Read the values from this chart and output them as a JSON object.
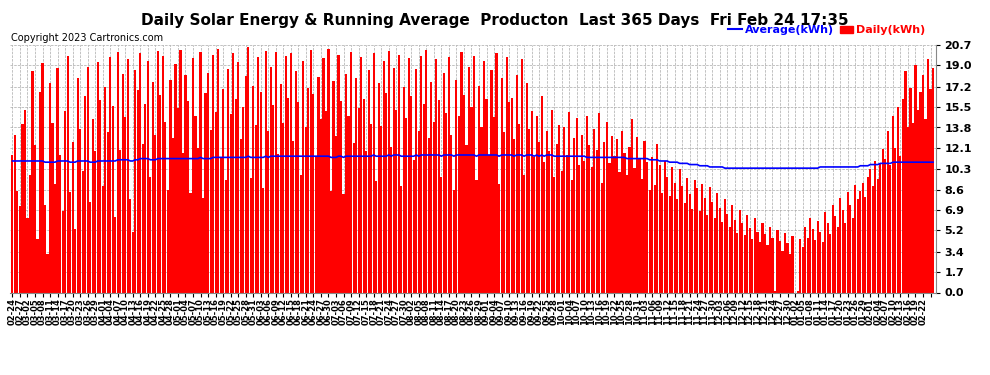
{
  "title": "Daily Solar Energy & Running Average  Producton  Last 365 Days  Fri Feb 24 17:35",
  "copyright": "Copyright 2023 Cartronics.com",
  "ylabel_right_ticks": [
    0.0,
    1.7,
    3.4,
    5.2,
    6.9,
    8.6,
    10.3,
    12.1,
    13.8,
    15.5,
    17.2,
    19.0,
    20.7
  ],
  "ylim": [
    0.0,
    20.7
  ],
  "bar_color": "#ff0000",
  "avg_color": "#0000ff",
  "legend_avg_label": "Average(kWh)",
  "legend_daily_label": "Daily(kWh)",
  "background_color": "#ffffff",
  "grid_color": "#aaaaaa",
  "title_fontsize": 11,
  "copyright_fontsize": 7,
  "x_dates": [
    "02-24",
    "02-25",
    "02-26",
    "02-27",
    "02-28",
    "03-01",
    "03-02",
    "03-03",
    "03-04",
    "03-05",
    "03-06",
    "03-07",
    "03-08",
    "03-09",
    "03-10",
    "03-11",
    "03-12",
    "03-13",
    "03-14",
    "03-15",
    "03-16",
    "03-17",
    "03-18",
    "03-19",
    "03-20",
    "03-21",
    "03-22",
    "03-23",
    "03-24",
    "03-25",
    "03-26",
    "03-27",
    "03-28",
    "03-29",
    "03-30",
    "03-31",
    "04-01",
    "04-02",
    "04-03",
    "04-04",
    "04-05",
    "04-06",
    "04-07",
    "04-08",
    "04-09",
    "04-10",
    "04-11",
    "04-12",
    "04-13",
    "04-14",
    "04-15",
    "04-16",
    "04-17",
    "04-18",
    "04-19",
    "04-20",
    "04-21",
    "04-22",
    "04-23",
    "04-24",
    "04-25",
    "04-26",
    "04-27",
    "04-28",
    "04-29",
    "04-30",
    "05-01",
    "05-02",
    "05-03",
    "05-04",
    "05-05",
    "05-06",
    "05-07",
    "05-08",
    "05-09",
    "05-10",
    "05-11",
    "05-12",
    "05-13",
    "05-14",
    "05-15",
    "05-16",
    "05-17",
    "05-18",
    "05-19",
    "05-20",
    "05-21",
    "05-22",
    "05-23",
    "05-24",
    "05-25",
    "05-26",
    "05-27",
    "05-28",
    "05-29",
    "05-30",
    "05-31",
    "06-01",
    "06-02",
    "06-03",
    "06-04",
    "06-05",
    "06-06",
    "06-07",
    "06-08",
    "06-09",
    "06-10",
    "06-11",
    "06-12",
    "06-13",
    "06-14",
    "06-15",
    "06-16",
    "06-17",
    "06-18",
    "06-19",
    "06-20",
    "06-21",
    "06-22",
    "06-23",
    "06-24",
    "06-25",
    "06-26",
    "06-27",
    "06-28",
    "06-29",
    "06-30",
    "07-01",
    "07-02",
    "07-03",
    "07-04",
    "07-05",
    "07-06",
    "07-07",
    "07-08",
    "07-09",
    "07-10",
    "07-11",
    "07-12",
    "07-13",
    "07-14",
    "07-15",
    "07-16",
    "07-17",
    "07-18",
    "07-19",
    "07-20",
    "07-21",
    "07-22",
    "07-23",
    "07-24",
    "07-25",
    "07-26",
    "07-27",
    "07-28",
    "07-29",
    "07-30",
    "07-31",
    "08-01",
    "08-02",
    "08-03",
    "08-04",
    "08-05",
    "08-06",
    "08-07",
    "08-08",
    "08-09",
    "08-10",
    "08-11",
    "08-12",
    "08-13",
    "08-14",
    "08-15",
    "08-16",
    "08-17",
    "08-18",
    "08-19",
    "08-20",
    "08-21",
    "08-22",
    "08-23",
    "08-24",
    "08-25",
    "08-26",
    "08-27",
    "08-28",
    "08-29",
    "08-30",
    "08-31",
    "09-01",
    "09-02",
    "09-03",
    "09-04",
    "09-05",
    "09-06",
    "09-07",
    "09-08",
    "09-09",
    "09-10",
    "09-11",
    "09-12",
    "09-13",
    "09-14",
    "09-15",
    "09-16",
    "09-17",
    "09-18",
    "09-19",
    "09-20",
    "09-21",
    "09-22",
    "09-23",
    "09-24",
    "09-25",
    "09-26",
    "09-27",
    "09-28",
    "09-29",
    "09-30",
    "10-01",
    "10-02",
    "10-03",
    "10-04",
    "10-05",
    "10-06",
    "10-07",
    "10-08",
    "10-09",
    "10-10",
    "10-11",
    "10-12",
    "10-13",
    "10-14",
    "10-15",
    "10-16",
    "10-17",
    "10-18",
    "10-19",
    "10-20",
    "10-21",
    "10-22",
    "10-23",
    "10-24",
    "10-25",
    "10-26",
    "10-27",
    "10-28",
    "10-29",
    "10-30",
    "10-31",
    "11-01",
    "11-02",
    "11-03",
    "11-04",
    "11-05",
    "11-06",
    "11-07",
    "11-08",
    "11-09",
    "11-10",
    "11-11",
    "11-12",
    "11-13",
    "11-14",
    "11-15",
    "11-16",
    "11-17",
    "11-18",
    "11-19",
    "11-20",
    "11-21",
    "11-22",
    "11-23",
    "11-24",
    "11-25",
    "11-26",
    "11-27",
    "11-28",
    "11-29",
    "11-30",
    "12-01",
    "12-02",
    "12-03",
    "12-04",
    "12-05",
    "12-06",
    "12-07",
    "12-08",
    "12-09",
    "12-10",
    "12-11",
    "12-12",
    "12-13",
    "12-14",
    "12-15",
    "12-16",
    "12-17",
    "12-18",
    "12-19",
    "12-20",
    "12-21",
    "12-22",
    "12-23",
    "12-24",
    "12-25",
    "12-26",
    "12-27",
    "12-28",
    "12-29",
    "12-30",
    "12-31",
    "01-01",
    "01-02",
    "01-03",
    "01-04",
    "01-05",
    "01-06",
    "01-07",
    "01-08",
    "01-09",
    "01-10",
    "01-11",
    "01-12",
    "01-13",
    "01-14",
    "01-15",
    "01-16",
    "01-17",
    "01-18",
    "01-19",
    "01-20",
    "01-21",
    "01-22",
    "01-23",
    "01-24",
    "01-25",
    "01-26",
    "01-27",
    "01-28",
    "01-29",
    "01-30",
    "01-31",
    "02-01",
    "02-02",
    "02-03",
    "02-04",
    "02-05",
    "02-06",
    "02-07",
    "02-08",
    "02-09",
    "02-10",
    "02-11",
    "02-12",
    "02-13",
    "02-14",
    "02-15",
    "02-16",
    "02-17",
    "02-18",
    "02-19",
    "02-20",
    "02-21",
    "02-22",
    "02-23",
    "02-24"
  ],
  "daily_values": [
    11.5,
    13.2,
    8.5,
    7.2,
    14.1,
    15.3,
    6.2,
    9.8,
    18.5,
    12.3,
    4.5,
    16.8,
    19.2,
    7.3,
    3.2,
    17.5,
    14.2,
    9.1,
    18.8,
    11.5,
    6.8,
    15.2,
    19.8,
    8.4,
    12.6,
    5.3,
    17.9,
    13.7,
    10.2,
    16.4,
    18.9,
    7.6,
    14.5,
    11.8,
    19.3,
    16.1,
    8.9,
    17.2,
    13.4,
    19.7,
    15.6,
    6.3,
    20.1,
    11.9,
    18.3,
    14.7,
    19.5,
    7.8,
    5.1,
    18.6,
    16.9,
    20.0,
    12.4,
    15.8,
    19.4,
    9.7,
    17.6,
    13.2,
    20.2,
    16.5,
    19.8,
    14.3,
    8.6,
    17.8,
    12.9,
    19.1,
    15.4,
    20.3,
    11.7,
    18.2,
    16.0,
    8.3,
    19.6,
    14.8,
    12.1,
    20.1,
    7.9,
    16.7,
    18.4,
    13.6,
    19.9,
    15.1,
    20.4,
    11.3,
    17.0,
    9.4,
    18.7,
    14.9,
    20.0,
    16.2,
    19.3,
    12.8,
    15.5,
    18.1,
    20.5,
    9.6,
    17.3,
    14.0,
    19.7,
    16.8,
    8.7,
    20.2,
    13.5,
    18.9,
    15.7,
    20.1,
    11.6,
    17.4,
    14.2,
    19.8,
    16.3,
    20.0,
    12.7,
    18.5,
    15.9,
    9.8,
    19.4,
    13.8,
    17.1,
    20.3,
    16.6,
    11.4,
    18.0,
    14.5,
    19.6,
    15.2,
    20.4,
    8.5,
    17.7,
    13.1,
    19.9,
    16.0,
    8.2,
    18.3,
    14.8,
    20.1,
    12.5,
    17.9,
    15.4,
    19.7,
    16.2,
    11.8,
    18.6,
    14.1,
    20.0,
    9.3,
    17.5,
    13.9,
    19.4,
    16.7,
    20.2,
    12.2,
    18.8,
    15.3,
    19.9,
    8.9,
    17.2,
    14.6,
    19.6,
    16.4,
    11.1,
    18.7,
    13.5,
    19.8,
    15.8,
    20.3,
    12.9,
    17.6,
    14.3,
    19.5,
    16.1,
    9.7,
    18.4,
    15.0,
    19.7,
    13.2,
    8.6,
    17.8,
    14.8,
    20.1,
    16.5,
    12.3,
    18.9,
    15.5,
    19.8,
    9.4,
    17.3,
    13.8,
    19.4,
    16.2,
    11.5,
    18.6,
    14.7,
    20.0,
    9.1,
    17.9,
    13.4,
    19.7,
    15.9,
    16.3,
    12.8,
    18.2,
    14.1,
    19.5,
    9.8,
    17.5,
    13.7,
    15.2,
    11.3,
    14.8,
    12.6,
    16.4,
    10.9,
    13.5,
    11.8,
    15.3,
    9.7,
    12.4,
    14.0,
    10.2,
    13.8,
    11.5,
    15.1,
    9.4,
    12.9,
    14.6,
    10.7,
    13.2,
    11.0,
    14.8,
    12.3,
    10.5,
    13.7,
    11.9,
    15.0,
    9.2,
    12.6,
    14.3,
    10.8,
    13.1,
    11.4,
    12.8,
    10.1,
    13.5,
    11.7,
    9.8,
    12.2,
    14.5,
    10.4,
    13.0,
    11.2,
    9.5,
    12.7,
    10.9,
    8.6,
    11.3,
    9.0,
    12.4,
    10.7,
    8.3,
    11.0,
    9.7,
    8.1,
    10.5,
    9.2,
    7.8,
    10.3,
    8.9,
    7.5,
    9.6,
    8.2,
    7.0,
    9.4,
    8.7,
    6.8,
    9.1,
    7.9,
    6.5,
    8.8,
    7.6,
    6.2,
    8.3,
    7.1,
    5.9,
    7.8,
    6.6,
    5.5,
    7.3,
    6.1,
    5.0,
    6.9,
    5.8,
    4.8,
    6.5,
    5.4,
    4.5,
    6.2,
    5.1,
    4.2,
    5.8,
    4.9,
    4.0,
    5.5,
    4.6,
    0.1,
    5.2,
    4.3,
    3.5,
    5.0,
    4.1,
    3.2,
    4.7,
    0.0,
    0.1,
    4.5,
    3.8,
    5.5,
    4.6,
    6.2,
    5.3,
    4.4,
    6.0,
    5.1,
    4.2,
    6.7,
    5.8,
    4.9,
    7.3,
    6.4,
    5.5,
    7.9,
    6.9,
    5.8,
    8.4,
    7.3,
    6.2,
    9.0,
    7.8,
    8.5,
    9.2,
    8.0,
    9.7,
    10.3,
    8.9,
    11.0,
    9.5,
    10.8,
    12.0,
    11.2,
    13.5,
    10.7,
    14.8,
    12.1,
    15.5,
    11.4,
    16.2,
    18.5,
    13.8,
    17.1,
    14.2,
    19.0,
    15.3,
    16.8,
    18.2,
    14.5,
    19.5,
    17.0,
    18.8
  ],
  "avg_values": [
    11.0,
    11.0,
    11.0,
    11.0,
    11.0,
    11.0,
    11.0,
    11.0,
    11.0,
    11.0,
    11.0,
    11.0,
    11.0,
    10.9,
    10.9,
    10.9,
    10.9,
    10.9,
    11.0,
    11.0,
    11.0,
    11.0,
    11.0,
    10.9,
    10.9,
    10.9,
    11.0,
    11.0,
    11.0,
    11.0,
    11.0,
    10.9,
    10.9,
    10.9,
    11.0,
    11.0,
    11.0,
    11.0,
    11.0,
    11.0,
    11.0,
    11.0,
    11.1,
    11.1,
    11.1,
    11.1,
    11.1,
    11.0,
    11.0,
    11.1,
    11.1,
    11.2,
    11.2,
    11.2,
    11.2,
    11.1,
    11.1,
    11.1,
    11.2,
    11.2,
    11.2,
    11.2,
    11.2,
    11.2,
    11.2,
    11.2,
    11.2,
    11.2,
    11.2,
    11.2,
    11.2,
    11.2,
    11.2,
    11.2,
    11.2,
    11.3,
    11.2,
    11.2,
    11.2,
    11.2,
    11.3,
    11.3,
    11.3,
    11.3,
    11.3,
    11.3,
    11.3,
    11.3,
    11.3,
    11.3,
    11.3,
    11.3,
    11.3,
    11.3,
    11.4,
    11.3,
    11.3,
    11.3,
    11.3,
    11.3,
    11.3,
    11.4,
    11.3,
    11.4,
    11.4,
    11.4,
    11.4,
    11.4,
    11.4,
    11.4,
    11.4,
    11.4,
    11.4,
    11.4,
    11.4,
    11.4,
    11.4,
    11.4,
    11.4,
    11.4,
    11.4,
    11.4,
    11.4,
    11.4,
    11.4,
    11.4,
    11.4,
    11.3,
    11.3,
    11.3,
    11.4,
    11.4,
    11.3,
    11.4,
    11.4,
    11.4,
    11.4,
    11.4,
    11.4,
    11.4,
    11.4,
    11.4,
    11.4,
    11.4,
    11.5,
    11.4,
    11.4,
    11.4,
    11.4,
    11.4,
    11.5,
    11.4,
    11.5,
    11.5,
    11.5,
    11.4,
    11.4,
    11.4,
    11.4,
    11.4,
    11.4,
    11.5,
    11.4,
    11.5,
    11.5,
    11.5,
    11.5,
    11.5,
    11.5,
    11.5,
    11.5,
    11.4,
    11.5,
    11.5,
    11.5,
    11.5,
    11.4,
    11.5,
    11.5,
    11.5,
    11.5,
    11.5,
    11.5,
    11.5,
    11.5,
    11.4,
    11.5,
    11.5,
    11.5,
    11.5,
    11.5,
    11.5,
    11.5,
    11.5,
    11.4,
    11.5,
    11.5,
    11.5,
    11.5,
    11.5,
    11.4,
    11.5,
    11.5,
    11.5,
    11.4,
    11.5,
    11.5,
    11.5,
    11.4,
    11.5,
    11.4,
    11.5,
    11.4,
    11.5,
    11.5,
    11.5,
    11.4,
    11.4,
    11.4,
    11.4,
    11.4,
    11.4,
    11.4,
    11.4,
    11.4,
    11.4,
    11.4,
    11.4,
    11.4,
    11.3,
    11.3,
    11.3,
    11.3,
    11.3,
    11.3,
    11.3,
    11.3,
    11.3,
    11.3,
    11.3,
    11.3,
    11.3,
    11.3,
    11.3,
    11.3,
    11.2,
    11.2,
    11.2,
    11.2,
    11.2,
    11.2,
    11.2,
    11.2,
    11.2,
    11.1,
    11.1,
    11.1,
    11.1,
    11.0,
    11.0,
    11.0,
    11.0,
    10.9,
    10.9,
    10.9,
    10.9,
    10.8,
    10.8,
    10.8,
    10.8,
    10.7,
    10.7,
    10.7,
    10.7,
    10.6,
    10.6,
    10.6,
    10.6,
    10.5,
    10.5,
    10.5,
    10.5,
    10.5,
    10.5,
    10.4,
    10.4,
    10.4,
    10.4,
    10.4,
    10.4,
    10.4,
    10.4,
    10.4,
    10.4,
    10.4,
    10.4,
    10.4,
    10.4,
    10.4,
    10.4,
    10.4,
    10.4,
    10.4,
    10.4,
    10.4,
    10.4,
    10.4,
    10.4,
    10.4,
    10.4,
    10.4,
    10.4,
    10.4,
    10.4,
    10.4,
    10.4,
    10.4,
    10.4,
    10.4,
    10.4,
    10.4,
    10.4,
    10.5,
    10.5,
    10.5,
    10.5,
    10.5,
    10.5,
    10.5,
    10.5,
    10.5,
    10.5,
    10.5,
    10.5,
    10.5,
    10.5,
    10.5,
    10.5,
    10.6,
    10.6,
    10.6,
    10.6,
    10.7,
    10.7,
    10.7,
    10.7,
    10.8,
    10.8,
    10.8,
    10.8,
    10.8,
    10.9,
    10.9,
    10.9,
    10.9,
    10.9,
    10.9,
    10.9,
    10.9,
    10.9,
    10.9,
    10.9,
    10.9,
    10.9,
    10.9,
    10.9,
    10.9,
    10.9
  ]
}
